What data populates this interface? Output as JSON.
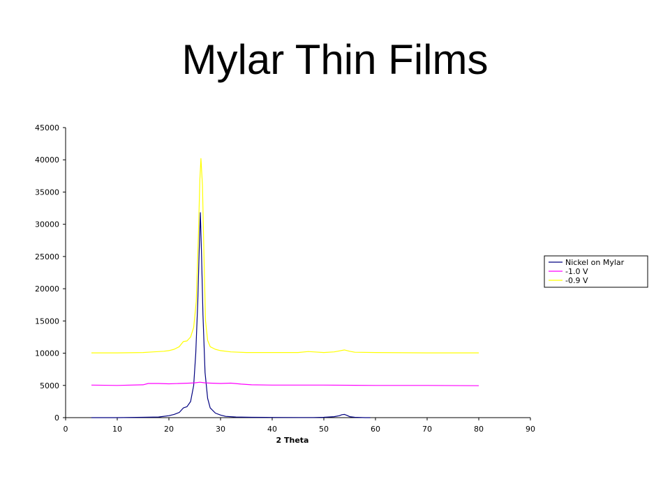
{
  "slide": {
    "title": "Mylar Thin Films"
  },
  "chart_data": {
    "type": "line",
    "title": "",
    "xlabel": "2 Theta",
    "ylabel": "",
    "xlim": [
      0,
      90
    ],
    "ylim": [
      0,
      45000
    ],
    "xticks": [
      0,
      10,
      20,
      30,
      40,
      50,
      60,
      70,
      80,
      90
    ],
    "yticks": [
      0,
      5000,
      10000,
      15000,
      20000,
      25000,
      30000,
      35000,
      40000,
      45000
    ],
    "grid": false,
    "legend_position": "right",
    "series": [
      {
        "name": "Nickel on Mylar",
        "color": "#000080",
        "x": [
          5,
          10,
          15,
          18,
          20,
          21,
          22,
          22.8,
          23.5,
          24.2,
          24.8,
          25.2,
          25.6,
          25.9,
          26.1,
          26.3,
          26.6,
          27.0,
          27.5,
          28.0,
          29,
          30,
          31,
          33,
          36,
          40,
          45,
          48,
          50,
          52,
          53,
          53.5,
          54,
          54.5,
          55,
          56,
          58,
          59
        ],
        "y": [
          0,
          0,
          50,
          100,
          300,
          500,
          800,
          1500,
          1700,
          2500,
          5000,
          10000,
          18000,
          27000,
          31800,
          26000,
          16000,
          7000,
          3000,
          1500,
          700,
          400,
          200,
          100,
          50,
          30,
          20,
          20,
          50,
          150,
          300,
          450,
          500,
          350,
          150,
          50,
          0,
          0
        ]
      },
      {
        "name": "-1.0 V",
        "color": "#ff00ff",
        "x": [
          5,
          10,
          15,
          16,
          18,
          20,
          22,
          24,
          25,
          26,
          27,
          28,
          30,
          32,
          34,
          36,
          40,
          50,
          60,
          70,
          80
        ],
        "y": [
          5050,
          5000,
          5100,
          5300,
          5300,
          5250,
          5300,
          5350,
          5400,
          5500,
          5400,
          5350,
          5300,
          5350,
          5200,
          5100,
          5050,
          5050,
          5000,
          5000,
          4950
        ]
      },
      {
        "name": "-0.9 V",
        "color": "#ffff00",
        "x": [
          5,
          10,
          15,
          17,
          19,
          20,
          21,
          22,
          22.8,
          23.5,
          24.2,
          24.8,
          25.3,
          25.7,
          26.0,
          26.2,
          26.5,
          26.8,
          27.1,
          27.5,
          28,
          29,
          30,
          32,
          35,
          40,
          45,
          47,
          48,
          50,
          52,
          53,
          54,
          55,
          56,
          60,
          70,
          80
        ],
        "y": [
          10050,
          10050,
          10100,
          10200,
          10300,
          10400,
          10600,
          11000,
          11800,
          11900,
          12500,
          14000,
          18000,
          28000,
          37000,
          40200,
          36000,
          25000,
          15000,
          12000,
          11000,
          10600,
          10400,
          10200,
          10100,
          10100,
          10100,
          10250,
          10200,
          10100,
          10200,
          10350,
          10500,
          10300,
          10150,
          10100,
          10050,
          10050
        ]
      }
    ]
  }
}
